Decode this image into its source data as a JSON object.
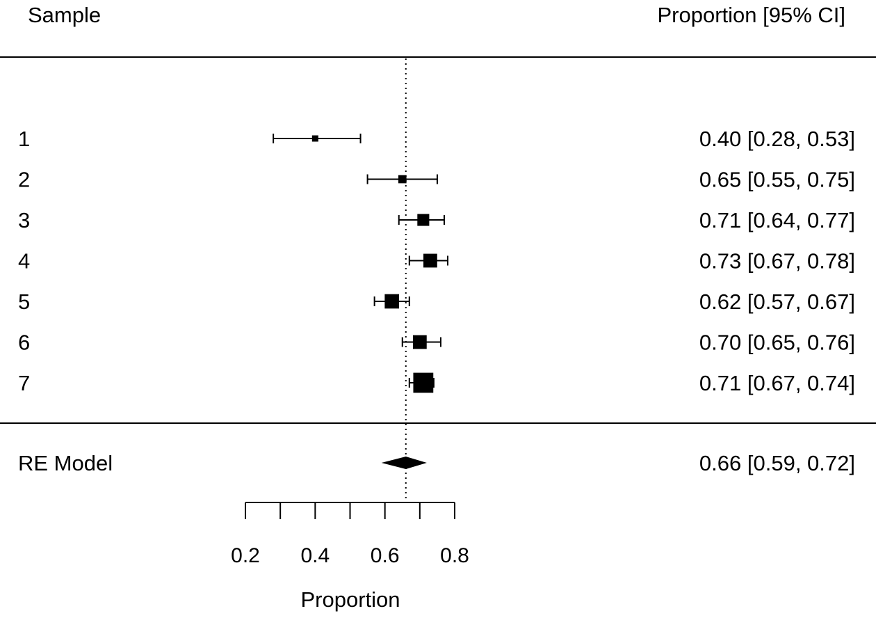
{
  "chart_data": {
    "type": "forest",
    "headers": {
      "left": "Sample",
      "right": "Proportion [95% CI]"
    },
    "xlabel": "Proportion",
    "xlim": [
      0.2,
      0.8
    ],
    "major_ticks": [
      0.2,
      0.4,
      0.6,
      0.8
    ],
    "minor_ticks": [
      0.3,
      0.5,
      0.7
    ],
    "tick_labels": [
      "0.2",
      "0.4",
      "0.6",
      "0.8"
    ],
    "reference_line": 0.66,
    "studies": [
      {
        "label": "1",
        "estimate": 0.4,
        "lower": 0.28,
        "upper": 0.53,
        "ci_text": "0.40 [0.28, 0.53]",
        "weight": 1.0
      },
      {
        "label": "2",
        "estimate": 0.65,
        "lower": 0.55,
        "upper": 0.75,
        "ci_text": "0.65 [0.55, 0.75]",
        "weight": 1.3
      },
      {
        "label": "3",
        "estimate": 0.71,
        "lower": 0.64,
        "upper": 0.77,
        "ci_text": "0.71 [0.64, 0.77]",
        "weight": 1.9
      },
      {
        "label": "4",
        "estimate": 0.73,
        "lower": 0.67,
        "upper": 0.78,
        "ci_text": "0.73 [0.67, 0.78]",
        "weight": 2.2
      },
      {
        "label": "5",
        "estimate": 0.62,
        "lower": 0.57,
        "upper": 0.67,
        "ci_text": "0.62 [0.57, 0.67]",
        "weight": 2.3
      },
      {
        "label": "6",
        "estimate": 0.7,
        "lower": 0.65,
        "upper": 0.76,
        "ci_text": "0.70 [0.65, 0.76]",
        "weight": 2.2
      },
      {
        "label": "7",
        "estimate": 0.71,
        "lower": 0.67,
        "upper": 0.74,
        "ci_text": "0.71 [0.67, 0.74]",
        "weight": 3.2
      }
    ],
    "summary": {
      "label": "RE Model",
      "estimate": 0.66,
      "lower": 0.59,
      "upper": 0.72,
      "ci_text": "0.66 [0.59, 0.72]"
    }
  }
}
